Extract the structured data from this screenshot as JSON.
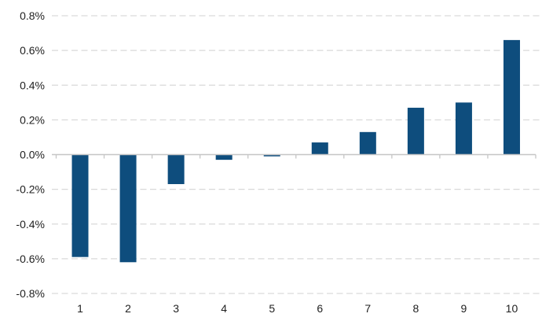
{
  "chart_data": {
    "type": "bar",
    "title": "",
    "xlabel": "",
    "ylabel": "",
    "categories": [
      "1",
      "2",
      "3",
      "4",
      "5",
      "6",
      "7",
      "8",
      "9",
      "10"
    ],
    "values": [
      -0.59,
      -0.62,
      -0.17,
      -0.03,
      -0.01,
      0.07,
      0.13,
      0.27,
      0.3,
      0.66
    ],
    "unit": "%",
    "ylim": [
      -0.8,
      0.8
    ],
    "ytick_step": 0.2,
    "yticks": [
      {
        "value": 0.8,
        "label": "0.8%"
      },
      {
        "value": 0.6,
        "label": "0.6%"
      },
      {
        "value": 0.4,
        "label": "0.4%"
      },
      {
        "value": 0.2,
        "label": "0.2%"
      },
      {
        "value": 0.0,
        "label": "0.0%"
      },
      {
        "value": -0.2,
        "label": "-0.2%"
      },
      {
        "value": -0.4,
        "label": "-0.4%"
      },
      {
        "value": -0.6,
        "label": "-0.6%"
      },
      {
        "value": -0.8,
        "label": "-0.8%"
      }
    ],
    "grid": "horizontal-dashed",
    "legend": "none",
    "colors": {
      "bar": "#0e4d7d",
      "gridline": "#d9d9d9",
      "axis": "#c6c6c6",
      "text": "#1f1f1f",
      "background": "#ffffff"
    }
  }
}
